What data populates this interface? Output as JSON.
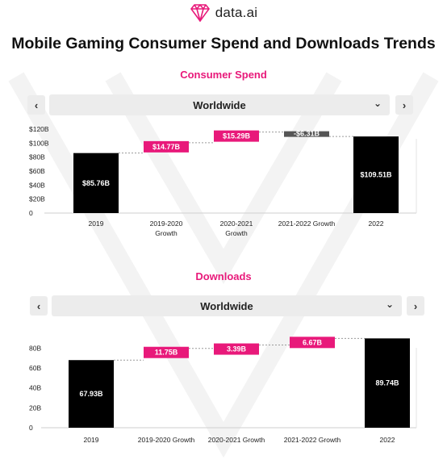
{
  "brand": {
    "name": "data.ai",
    "logo_icon": "diamond-logo-icon"
  },
  "title": "Mobile Gaming Consumer Spend and Downloads Trends",
  "colors": {
    "accent": "#e8197a",
    "bar": "#000000",
    "gray_bar": "#555555",
    "panel": "#ececec"
  },
  "sections": [
    {
      "title": "Consumer Spend",
      "nav": {
        "prev_icon": "chevron-left-icon",
        "next_icon": "chevron-right-icon",
        "selected": "Worldwide",
        "dropdown_icon": "chevron-down-icon"
      }
    },
    {
      "title": "Downloads",
      "nav": {
        "prev_icon": "chevron-left-icon",
        "next_icon": "chevron-right-icon",
        "selected": "Worldwide",
        "dropdown_icon": "chevron-down-icon"
      }
    }
  ],
  "chart_data": [
    {
      "type": "bar",
      "subtype": "waterfall",
      "title": "Consumer Spend",
      "yticks": [
        "0",
        "$20B",
        "$40B",
        "$60B",
        "$80B",
        "$100B",
        "$120B"
      ],
      "ylim": [
        0,
        120
      ],
      "grid": false,
      "bars": [
        {
          "category": "2019",
          "kind": "total",
          "start": 0,
          "end": 85.76,
          "label": "$85.76B"
        },
        {
          "category": "2019-2020 Growth",
          "kind": "increase",
          "start": 85.76,
          "end": 100.53,
          "label": "$14.77B"
        },
        {
          "category": "2020-2021 Growth",
          "kind": "increase",
          "start": 100.53,
          "end": 115.82,
          "label": "$15.29B"
        },
        {
          "category": "2021-2022 Growth",
          "kind": "decrease",
          "start": 115.82,
          "end": 109.51,
          "label": "-$6.31B"
        },
        {
          "category": "2022",
          "kind": "total",
          "start": 0,
          "end": 109.51,
          "label": "$109.51B"
        }
      ],
      "xtick_lines": [
        [
          "2019"
        ],
        [
          "2019-2020",
          "Growth"
        ],
        [
          "2020-2021",
          "Growth"
        ],
        [
          "2021-2022 Growth"
        ],
        [
          "2022"
        ]
      ]
    },
    {
      "type": "bar",
      "subtype": "waterfall",
      "title": "Downloads",
      "yticks": [
        "0",
        "20B",
        "40B",
        "60B",
        "80B"
      ],
      "ylim": [
        0,
        90
      ],
      "grid": false,
      "bars": [
        {
          "category": "2019",
          "kind": "total",
          "start": 0,
          "end": 67.93,
          "label": "67.93B"
        },
        {
          "category": "2019-2020 Growth",
          "kind": "increase",
          "start": 67.93,
          "end": 79.68,
          "label": "11.75B"
        },
        {
          "category": "2020-2021 Growth",
          "kind": "increase",
          "start": 79.68,
          "end": 83.07,
          "label": "3.39B"
        },
        {
          "category": "2021-2022 Growth",
          "kind": "increase",
          "start": 83.07,
          "end": 89.74,
          "label": "6.67B"
        },
        {
          "category": "2022",
          "kind": "total",
          "start": 0,
          "end": 89.74,
          "label": "89.74B"
        }
      ],
      "xtick_lines": [
        [
          "2019"
        ],
        [
          "2019-2020 Growth"
        ],
        [
          "2020-2021 Growth"
        ],
        [
          "2021-2022 Growth"
        ],
        [
          "2022"
        ]
      ]
    }
  ]
}
